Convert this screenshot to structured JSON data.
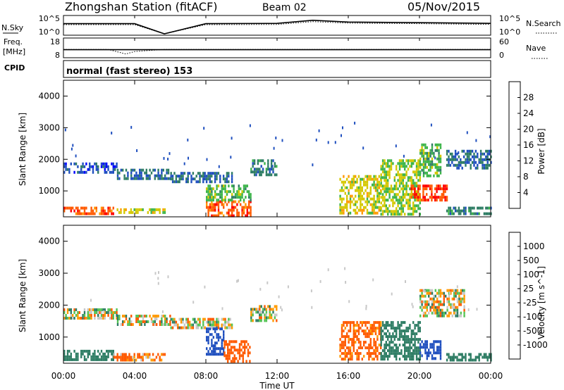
{
  "header": {
    "station": "Zhongshan Station (fitACF)",
    "beam": "Beam 02",
    "date": "05/Nov/2015"
  },
  "noise_panel": {
    "left_label": "N.Sky",
    "left_ticks": [
      "10^5",
      "10^0"
    ],
    "right_label": "N.Search",
    "right_ticks": [
      "10^5",
      "10^0"
    ]
  },
  "freq_panel": {
    "left_label_1": "Freq.",
    "left_label_2": "[MHz]",
    "left_ticks": [
      "18",
      "8"
    ],
    "right_label": "Nave",
    "right_ticks": [
      "60",
      "0"
    ]
  },
  "cpid": {
    "label": "CPID",
    "text": "normal (fast stereo) 153"
  },
  "x_axis": {
    "label": "Time UT",
    "ticks": [
      "00:00",
      "04:00",
      "08:00",
      "12:00",
      "16:00",
      "20:00",
      "00:00"
    ]
  },
  "colors": {
    "power": [
      "#0000ff",
      "#1f4fbf",
      "#2e7d64",
      "#3db54a",
      "#d4c800",
      "#ff9a00",
      "#ff5a00",
      "#ff0000"
    ],
    "velocity": [
      "#ff0000",
      "#ff5a00",
      "#ff9a00",
      "#c8c8c8",
      "#c8c8c8",
      "#55c455",
      "#2e7d64",
      "#1f4fbf",
      "#2038c8"
    ]
  },
  "chart_data": [
    {
      "type": "line",
      "title": "Zhongshan Station (fitACF)",
      "ylabel": "N.Sky",
      "y2label": "N.Search",
      "yscale": "log",
      "ylim": [
        1,
        100000
      ],
      "x": [
        "00:00",
        "04:00",
        "05:40",
        "08:00",
        "12:00",
        "14:00",
        "16:00",
        "20:00",
        "00:00"
      ],
      "series": [
        {
          "name": "N.Sky",
          "values": [
            1000,
            1000,
            1,
            1000,
            1200,
            10000,
            3000,
            2000,
            1200
          ]
        },
        {
          "name": "N.Search",
          "values": [
            500,
            500,
            1,
            500,
            600,
            4000,
            1500,
            1000,
            600
          ]
        }
      ]
    },
    {
      "type": "line",
      "ylabel": "Freq. [MHz]",
      "y2label": "Nave",
      "ylim": [
        8,
        18
      ],
      "y2lim": [
        0,
        60
      ],
      "x": [
        "00:00",
        "02:30",
        "03:30",
        "04:00",
        "05:40",
        "08:00",
        "00:00"
      ],
      "series": [
        {
          "name": "Freq.",
          "values": [
            12,
            12,
            12,
            12,
            12,
            12,
            12
          ]
        },
        {
          "name": "Nave",
          "values": [
            25,
            25,
            10,
            18,
            25,
            25,
            25
          ]
        }
      ]
    },
    {
      "type": "heatmap",
      "xlabel": "Time UT",
      "ylabel": "Slant Range [km]",
      "colorbar_label": "Power [dB]",
      "ylim": [
        180,
        4500
      ],
      "yticks": [
        "1000",
        "2000",
        "3000",
        "4000"
      ],
      "colorbar_ticks": [
        "4",
        "8",
        "12",
        "16",
        "20",
        "24",
        "28"
      ],
      "x_hours": [
        0,
        24
      ],
      "echo_regions": [
        {
          "t": [
            0.0,
            2.8
          ],
          "range": [
            300,
            500
          ],
          "value": 26
        },
        {
          "t": [
            2.8,
            5.7
          ],
          "range": [
            300,
            450
          ],
          "value": 18
        },
        {
          "t": [
            0.0,
            3.0
          ],
          "range": [
            1600,
            1900
          ],
          "value": 6
        },
        {
          "t": [
            3.0,
            6.0
          ],
          "range": [
            1400,
            1700
          ],
          "value": 8
        },
        {
          "t": [
            6.0,
            9.5
          ],
          "range": [
            1300,
            1600
          ],
          "value": 8
        },
        {
          "t": [
            8.0,
            10.5
          ],
          "range": [
            250,
            700
          ],
          "value": 26
        },
        {
          "t": [
            8.0,
            10.5
          ],
          "range": [
            700,
            1200
          ],
          "value": 14
        },
        {
          "t": [
            10.5,
            12.0
          ],
          "range": [
            1500,
            2000
          ],
          "value": 10
        },
        {
          "t": [
            15.5,
            17.8
          ],
          "range": [
            300,
            1500
          ],
          "value": 18
        },
        {
          "t": [
            17.8,
            20.0
          ],
          "range": [
            300,
            2000
          ],
          "value": 16
        },
        {
          "t": [
            19.5,
            21.5
          ],
          "range": [
            700,
            1200
          ],
          "value": 28
        },
        {
          "t": [
            20.0,
            21.2
          ],
          "range": [
            1500,
            2500
          ],
          "value": 14
        },
        {
          "t": [
            21.5,
            24.0
          ],
          "range": [
            1700,
            2300
          ],
          "value": 8
        },
        {
          "t": [
            21.5,
            24.0
          ],
          "range": [
            300,
            500
          ],
          "value": 10
        }
      ]
    },
    {
      "type": "heatmap",
      "xlabel": "Time UT",
      "ylabel": "Slant Range [km]",
      "colorbar_label": "Velocity [m s^-1]",
      "ylim": [
        180,
        4500
      ],
      "yticks": [
        "1000",
        "2000",
        "3000",
        "4000"
      ],
      "colorbar_ticks": [
        "-1000",
        "-500",
        "-100",
        "-25",
        "25",
        "100",
        "500",
        "1000"
      ],
      "x_hours": [
        0,
        24
      ],
      "echo_regions": [
        {
          "t": [
            0.0,
            2.8
          ],
          "range": [
            300,
            600
          ],
          "value": 300
        },
        {
          "t": [
            2.8,
            5.7
          ],
          "range": [
            300,
            500
          ],
          "value": -150
        },
        {
          "t": [
            0.0,
            3.0
          ],
          "range": [
            1600,
            1900
          ],
          "value": 0
        },
        {
          "t": [
            3.0,
            6.0
          ],
          "range": [
            1400,
            1700
          ],
          "value": 0
        },
        {
          "t": [
            6.0,
            9.5
          ],
          "range": [
            1300,
            1600
          ],
          "value": 0
        },
        {
          "t": [
            8.0,
            9.0
          ],
          "range": [
            500,
            1300
          ],
          "value": 800
        },
        {
          "t": [
            9.0,
            10.5
          ],
          "range": [
            250,
            900
          ],
          "value": -300
        },
        {
          "t": [
            10.5,
            12.0
          ],
          "range": [
            1500,
            2000
          ],
          "value": 0
        },
        {
          "t": [
            15.5,
            17.8
          ],
          "range": [
            300,
            1500
          ],
          "value": -200
        },
        {
          "t": [
            17.8,
            20.0
          ],
          "range": [
            300,
            1500
          ],
          "value": 300
        },
        {
          "t": [
            20.0,
            21.2
          ],
          "range": [
            300,
            900
          ],
          "value": 700
        },
        {
          "t": [
            20.0,
            22.5
          ],
          "range": [
            1700,
            2500
          ],
          "value": 0
        },
        {
          "t": [
            21.5,
            24.0
          ],
          "range": [
            300,
            500
          ],
          "value": 300
        }
      ]
    }
  ]
}
